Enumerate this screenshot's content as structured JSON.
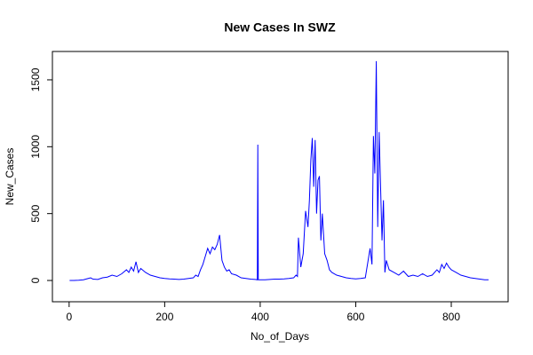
{
  "chart_data": {
    "type": "line",
    "title": "New Cases In SWZ",
    "x_label": "No_of_Days",
    "y_label": "New_Cases",
    "x": [
      1,
      10,
      20,
      30,
      40,
      45,
      50,
      60,
      70,
      80,
      90,
      100,
      110,
      120,
      125,
      130,
      135,
      140,
      145,
      150,
      160,
      170,
      180,
      190,
      200,
      210,
      220,
      230,
      240,
      250,
      260,
      265,
      270,
      275,
      280,
      285,
      290,
      295,
      300,
      305,
      310,
      315,
      320,
      325,
      330,
      335,
      340,
      350,
      360,
      370,
      380,
      390,
      394,
      395,
      396,
      400,
      410,
      420,
      430,
      440,
      450,
      460,
      470,
      475,
      478,
      480,
      485,
      490,
      495,
      500,
      503,
      506,
      509,
      512,
      515,
      518,
      521,
      524,
      527,
      530,
      535,
      540,
      545,
      550,
      560,
      570,
      580,
      590,
      600,
      610,
      620,
      630,
      634,
      637,
      640,
      643,
      646,
      649,
      652,
      655,
      658,
      661,
      664,
      670,
      680,
      690,
      700,
      710,
      720,
      730,
      740,
      750,
      760,
      770,
      775,
      780,
      785,
      790,
      795,
      800,
      810,
      820,
      830,
      840,
      850,
      860,
      870,
      878
    ],
    "series": [
      {
        "name": "New_Cases",
        "color": "#0000ff",
        "values": [
          0,
          0,
          2,
          5,
          15,
          20,
          10,
          8,
          20,
          25,
          40,
          30,
          50,
          80,
          60,
          100,
          70,
          140,
          60,
          90,
          60,
          40,
          30,
          20,
          15,
          12,
          10,
          8,
          10,
          15,
          20,
          40,
          30,
          80,
          120,
          180,
          240,
          200,
          250,
          230,
          270,
          340,
          150,
          100,
          70,
          80,
          50,
          40,
          20,
          15,
          10,
          8,
          5,
          1015,
          5,
          5,
          5,
          8,
          10,
          10,
          12,
          15,
          20,
          40,
          30,
          320,
          100,
          200,
          520,
          400,
          600,
          900,
          1065,
          700,
          1050,
          500,
          750,
          780,
          300,
          500,
          200,
          150,
          80,
          60,
          40,
          30,
          20,
          15,
          12,
          15,
          20,
          240,
          120,
          1080,
          800,
          1640,
          400,
          1110,
          700,
          300,
          600,
          60,
          150,
          80,
          60,
          40,
          70,
          30,
          40,
          30,
          50,
          30,
          40,
          80,
          60,
          120,
          90,
          130,
          100,
          80,
          60,
          40,
          30,
          20,
          15,
          10,
          5,
          5
        ]
      }
    ],
    "xlim": [
      -35,
      919
    ],
    "ylim": [
      -159,
      1712
    ],
    "xticks": [
      0,
      200,
      400,
      600,
      800
    ],
    "yticks": [
      0,
      500,
      1000,
      1500
    ]
  }
}
